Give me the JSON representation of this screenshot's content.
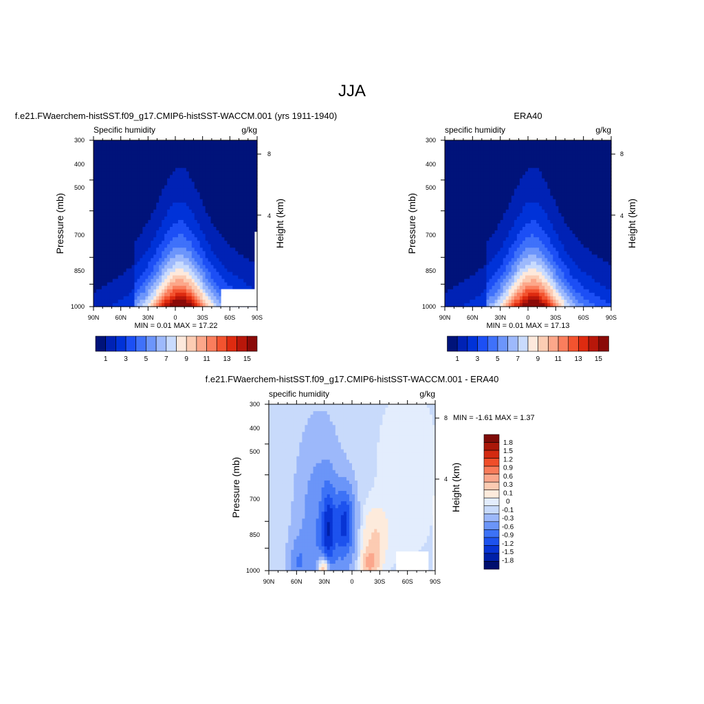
{
  "figure": {
    "title": "JJA"
  },
  "palette": {
    "q": [
      "#00137a",
      "#0022b5",
      "#0032d8",
      "#1c4ff5",
      "#3f71fa",
      "#6c95fb",
      "#9db9fc",
      "#c9dbfd",
      "#fde9dc",
      "#fcccb3",
      "#fca78a",
      "#fa7e5d",
      "#f3532f",
      "#de2b10",
      "#b8170a",
      "#8a0a08"
    ],
    "diff": [
      "#000f6e",
      "#0020a8",
      "#0834d4",
      "#1d52ee",
      "#3d72f6",
      "#6b95f8",
      "#9cb8fa",
      "#c8dafb",
      "#e3edfd",
      "#fdebdc",
      "#fccbb2",
      "#fba78c",
      "#f97b5a",
      "#f04e2a",
      "#d32a11",
      "#aa1709",
      "#7f0c08"
    ]
  },
  "chart_data": [
    {
      "type": "heatmap",
      "title": "f.e21.FWaerchem-histSST.f09_g17.CMIP6-histSST-WACCM.001 (yrs 1911-1940)",
      "left_label": "Specific humidity",
      "units": "g/kg",
      "ylabel": "Pressure (mb)",
      "ylabel_right": "Height (km)",
      "xticks": [
        "90N",
        "60N",
        "30N",
        "0",
        "30S",
        "60S",
        "90S"
      ],
      "yticks": [
        "300",
        "400",
        "500",
        "700",
        "850",
        "1000"
      ],
      "yticks_right": [
        "8",
        "4"
      ],
      "stats": "MIN =   0.01  MAX =  17.22",
      "colorbar_labels": [
        "1",
        "3",
        "5",
        "7",
        "9",
        "11",
        "13",
        "15"
      ],
      "peak_q": 17.22,
      "peak_lat": -5,
      "missing_box": true
    },
    {
      "type": "heatmap",
      "title": "ERA40",
      "left_label": "specific humidity",
      "units": "g/kg",
      "ylabel": "Pressure (mb)",
      "ylabel_right": "Height (km)",
      "xticks": [
        "90N",
        "60N",
        "30N",
        "0",
        "30S",
        "60S",
        "90S"
      ],
      "yticks": [
        "300",
        "400",
        "500",
        "700",
        "850",
        "1000"
      ],
      "yticks_right": [
        "8",
        "4"
      ],
      "stats": "MIN =   0.01  MAX =  17.13",
      "colorbar_labels": [
        "1",
        "3",
        "5",
        "7",
        "9",
        "11",
        "13",
        "15"
      ],
      "peak_q": 17.13,
      "peak_lat": -5,
      "missing_box": false
    },
    {
      "type": "heatmap",
      "title": "f.e21.FWaerchem-histSST.f09_g17.CMIP6-histSST-WACCM.001 - ERA40",
      "left_label": "specific humidity",
      "units": "g/kg",
      "ylabel": "Pressure (mb)",
      "ylabel_right": "Height (km)",
      "xticks": [
        "90N",
        "60N",
        "30N",
        "0",
        "30S",
        "60S",
        "90S"
      ],
      "yticks": [
        "300",
        "400",
        "500",
        "700",
        "850",
        "1000"
      ],
      "yticks_right": [
        "8",
        "4"
      ],
      "stats": "MIN =  -1.61  MAX =   1.37",
      "colorbar_labels": [
        "1.8",
        "1.5",
        "1.2",
        "0.9",
        "0.6",
        "0.3",
        "0.1",
        "0",
        "-0.1",
        "-0.3",
        "-0.6",
        "-0.9",
        "-1.2",
        "-1.5",
        "-1.8"
      ],
      "levels": [
        -1.8,
        -1.5,
        -1.2,
        -0.9,
        -0.6,
        -0.3,
        -0.1,
        0,
        0.1,
        0.3,
        0.6,
        0.9,
        1.2,
        1.5,
        1.8
      ],
      "missing_box": true
    }
  ]
}
